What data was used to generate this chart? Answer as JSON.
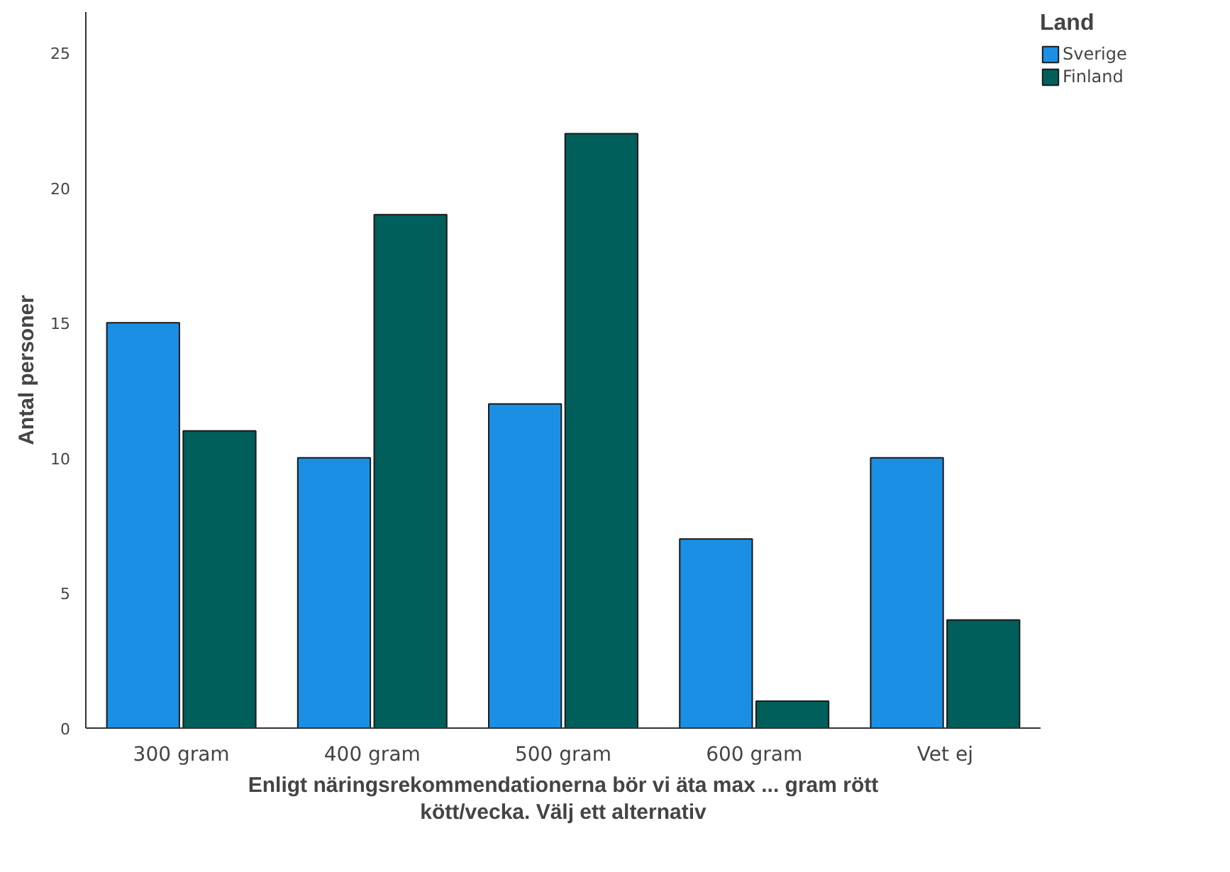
{
  "chart_data": {
    "type": "bar",
    "xlabel": "Enligt näringsrekommendationerna bör vi äta max ... gram rött kött/vecka. Välj ett alternativ",
    "ylabel": "Antal personer",
    "legend_title": "Land",
    "categories": [
      "300 gram",
      "400 gram",
      "500 gram",
      "600 gram",
      "Vet ej"
    ],
    "series": [
      {
        "name": "Sverige",
        "color": "#1a8fe3",
        "values": [
          15,
          10,
          12,
          7,
          10
        ]
      },
      {
        "name": "Finland",
        "color": "#005f5a",
        "values": [
          11,
          19,
          22,
          1,
          4
        ]
      }
    ],
    "ylim": [
      0,
      26.5
    ],
    "yticks": [
      0,
      5,
      10,
      15,
      20,
      25
    ],
    "grid": false,
    "legend": "top right"
  }
}
